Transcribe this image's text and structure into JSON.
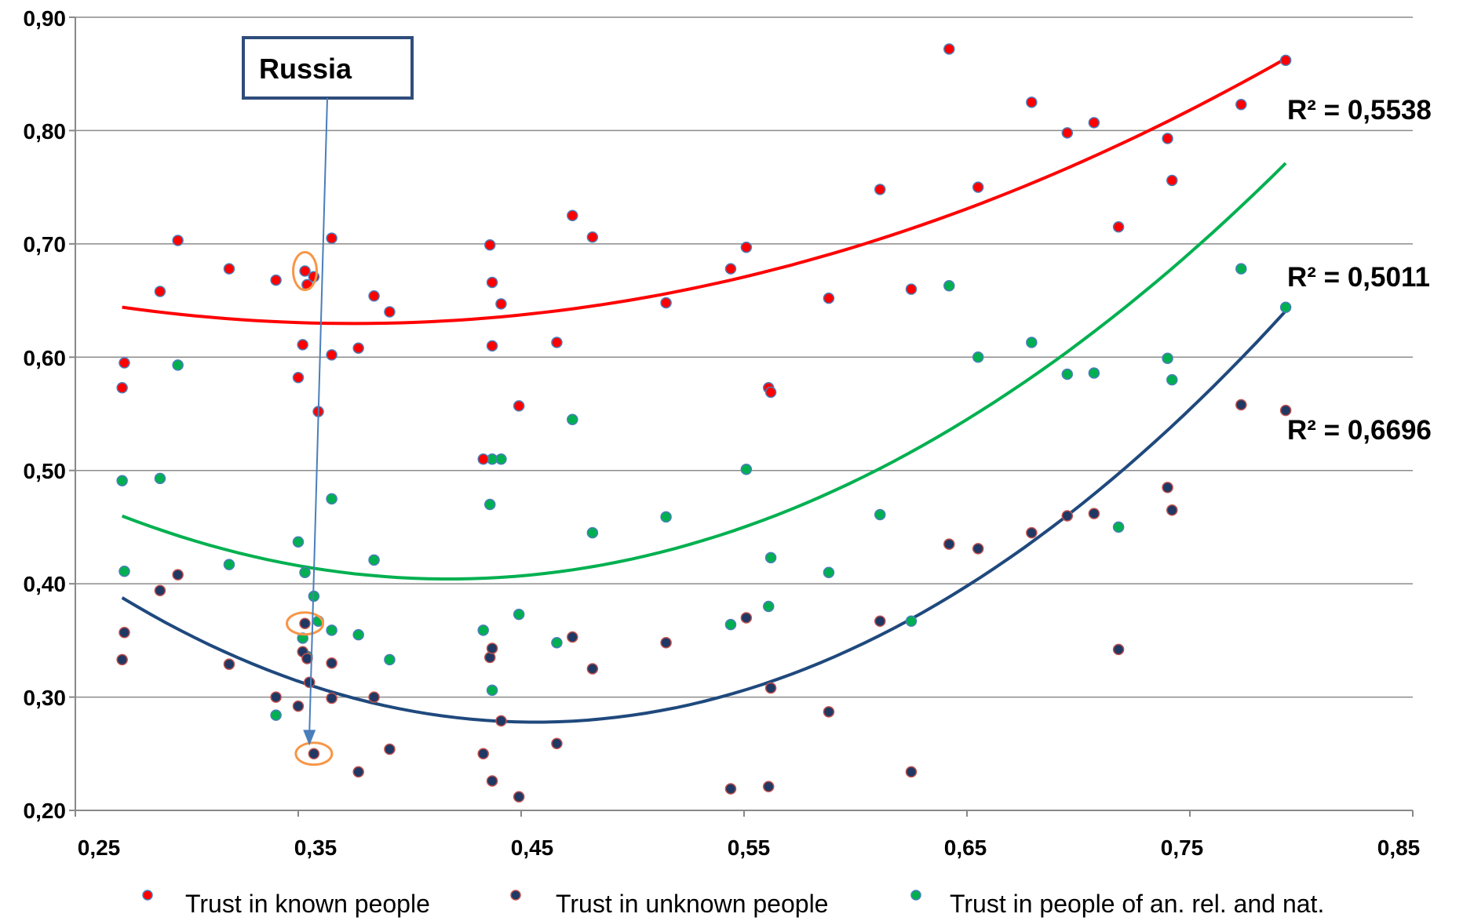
{
  "chart_data": {
    "type": "scatter",
    "xlim": [
      0.25,
      0.85
    ],
    "ylim": [
      0.2,
      0.9
    ],
    "x_ticks": [
      "0,25",
      "0,35",
      "0,45",
      "0,55",
      "0,65",
      "0,75",
      "0,85"
    ],
    "y_ticks": [
      "0,20",
      "0,30",
      "0,40",
      "0,50",
      "0,60",
      "0,70",
      "0,80",
      "0,90"
    ],
    "grid": "horizontal",
    "legend_position": "bottom",
    "annotation": "Russia",
    "series": [
      {
        "name": "Trust in known people",
        "color": "#ff0000",
        "edge_color": "#4a7ebb",
        "trend_color": "#ff0000",
        "r2_label": "R² = 0,5538",
        "trend_coef": [
          1.3366,
          -1.0017,
          0.8174
        ],
        "points": [
          [
            0.271,
            0.573
          ],
          [
            0.272,
            0.595
          ],
          [
            0.288,
            0.658
          ],
          [
            0.296,
            0.703
          ],
          [
            0.319,
            0.678
          ],
          [
            0.34,
            0.668
          ],
          [
            0.35,
            0.582
          ],
          [
            0.352,
            0.611
          ],
          [
            0.353,
            0.676
          ],
          [
            0.354,
            0.664
          ],
          [
            0.357,
            0.671
          ],
          [
            0.359,
            0.552
          ],
          [
            0.365,
            0.705
          ],
          [
            0.365,
            0.602
          ],
          [
            0.377,
            0.608
          ],
          [
            0.384,
            0.654
          ],
          [
            0.391,
            0.64
          ],
          [
            0.433,
            0.51
          ],
          [
            0.436,
            0.699
          ],
          [
            0.437,
            0.666
          ],
          [
            0.437,
            0.61
          ],
          [
            0.441,
            0.647
          ],
          [
            0.449,
            0.557
          ],
          [
            0.466,
            0.613
          ],
          [
            0.473,
            0.725
          ],
          [
            0.482,
            0.706
          ],
          [
            0.515,
            0.648
          ],
          [
            0.544,
            0.678
          ],
          [
            0.551,
            0.697
          ],
          [
            0.561,
            0.573
          ],
          [
            0.562,
            0.569
          ],
          [
            0.588,
            0.652
          ],
          [
            0.611,
            0.748
          ],
          [
            0.625,
            0.66
          ],
          [
            0.642,
            0.872
          ],
          [
            0.655,
            0.75
          ],
          [
            0.679,
            0.825
          ],
          [
            0.695,
            0.798
          ],
          [
            0.707,
            0.807
          ],
          [
            0.718,
            0.715
          ],
          [
            0.74,
            0.793
          ],
          [
            0.742,
            0.756
          ],
          [
            0.773,
            0.823
          ],
          [
            0.793,
            0.862
          ]
        ]
      },
      {
        "name": "Trust in unknown people",
        "color": "#1f3864",
        "edge_color": "#c0504d",
        "trend_color": "#1f497d",
        "r2_label": "R² = 0,6696",
        "trend_coef": [
          3.2,
          -2.92,
          0.944
        ],
        "points": [
          [
            0.271,
            0.333
          ],
          [
            0.272,
            0.357
          ],
          [
            0.288,
            0.394
          ],
          [
            0.296,
            0.408
          ],
          [
            0.319,
            0.329
          ],
          [
            0.34,
            0.3
          ],
          [
            0.35,
            0.292
          ],
          [
            0.352,
            0.34
          ],
          [
            0.353,
            0.365
          ],
          [
            0.354,
            0.334
          ],
          [
            0.355,
            0.313
          ],
          [
            0.357,
            0.25
          ],
          [
            0.365,
            0.299
          ],
          [
            0.365,
            0.33
          ],
          [
            0.377,
            0.234
          ],
          [
            0.384,
            0.3
          ],
          [
            0.391,
            0.254
          ],
          [
            0.433,
            0.25
          ],
          [
            0.436,
            0.335
          ],
          [
            0.437,
            0.343
          ],
          [
            0.437,
            0.226
          ],
          [
            0.441,
            0.279
          ],
          [
            0.449,
            0.212
          ],
          [
            0.466,
            0.259
          ],
          [
            0.473,
            0.353
          ],
          [
            0.482,
            0.325
          ],
          [
            0.515,
            0.348
          ],
          [
            0.544,
            0.219
          ],
          [
            0.551,
            0.37
          ],
          [
            0.561,
            0.221
          ],
          [
            0.562,
            0.308
          ],
          [
            0.588,
            0.287
          ],
          [
            0.611,
            0.367
          ],
          [
            0.625,
            0.234
          ],
          [
            0.642,
            0.435
          ],
          [
            0.655,
            0.431
          ],
          [
            0.679,
            0.445
          ],
          [
            0.695,
            0.46
          ],
          [
            0.707,
            0.462
          ],
          [
            0.718,
            0.342
          ],
          [
            0.74,
            0.485
          ],
          [
            0.742,
            0.465
          ],
          [
            0.773,
            0.558
          ],
          [
            0.793,
            0.553
          ]
        ]
      },
      {
        "name": "Trust in people of an. rel. and nat.",
        "color": "#00b050",
        "edge_color": "#4a7ebb",
        "trend_color": "#00b050",
        "r2_label": "R² = 0,5011",
        "trend_coef": [
          2.6,
          -2.17,
          0.857
        ],
        "points": [
          [
            0.271,
            0.491
          ],
          [
            0.272,
            0.411
          ],
          [
            0.288,
            0.493
          ],
          [
            0.296,
            0.593
          ],
          [
            0.319,
            0.417
          ],
          [
            0.34,
            0.284
          ],
          [
            0.35,
            0.437
          ],
          [
            0.352,
            0.352
          ],
          [
            0.353,
            0.41
          ],
          [
            0.354,
            0.336
          ],
          [
            0.357,
            0.389
          ],
          [
            0.359,
            0.367
          ],
          [
            0.365,
            0.475
          ],
          [
            0.365,
            0.359
          ],
          [
            0.377,
            0.355
          ],
          [
            0.384,
            0.421
          ],
          [
            0.391,
            0.333
          ],
          [
            0.433,
            0.359
          ],
          [
            0.436,
            0.47
          ],
          [
            0.437,
            0.51
          ],
          [
            0.437,
            0.306
          ],
          [
            0.441,
            0.51
          ],
          [
            0.449,
            0.373
          ],
          [
            0.466,
            0.348
          ],
          [
            0.473,
            0.545
          ],
          [
            0.482,
            0.445
          ],
          [
            0.515,
            0.459
          ],
          [
            0.544,
            0.364
          ],
          [
            0.551,
            0.501
          ],
          [
            0.561,
            0.38
          ],
          [
            0.562,
            0.423
          ],
          [
            0.588,
            0.41
          ],
          [
            0.611,
            0.461
          ],
          [
            0.625,
            0.367
          ],
          [
            0.642,
            0.663
          ],
          [
            0.655,
            0.6
          ],
          [
            0.679,
            0.613
          ],
          [
            0.695,
            0.585
          ],
          [
            0.707,
            0.586
          ],
          [
            0.718,
            0.45
          ],
          [
            0.74,
            0.599
          ],
          [
            0.742,
            0.58
          ],
          [
            0.773,
            0.678
          ],
          [
            0.793,
            0.644
          ]
        ]
      }
    ]
  },
  "russia_points": [
    [
      0.353,
      0.676
    ],
    [
      0.353,
      0.365
    ],
    [
      0.357,
      0.25
    ]
  ],
  "highlight_color": "#f79646",
  "callout_color": "#2e4d7b",
  "arrow_color": "#4a7ebb",
  "arrow_target": [
    0.355,
    0.26
  ]
}
